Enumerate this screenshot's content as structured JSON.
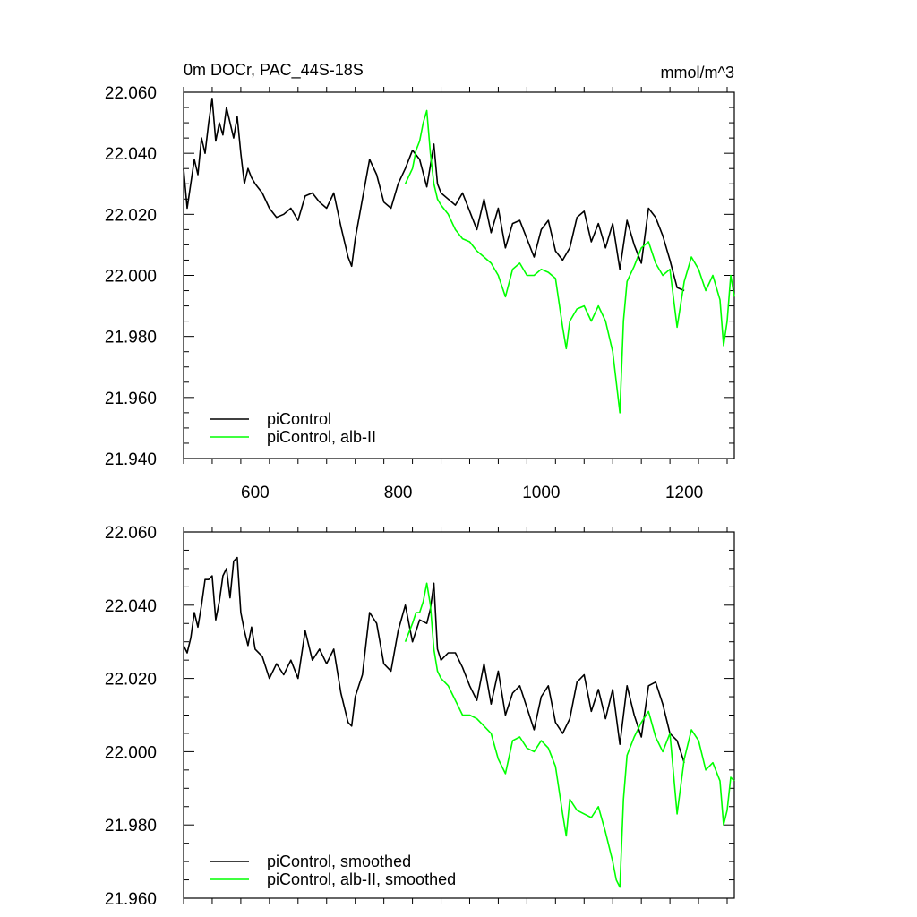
{
  "colors": {
    "background": "#ffffff",
    "axis": "#000000",
    "series_1": "#000000",
    "series_2": "#00ff00"
  },
  "chart_data": [
    {
      "type": "line",
      "title": "0m DOCr, PAC_44S-18S",
      "units": "mmol/m^3",
      "xlim": [
        500,
        1270
      ],
      "ylim": [
        21.94,
        22.06
      ],
      "x_ticks": [
        600,
        800,
        1000,
        1200
      ],
      "x_tick_labels": [
        "600",
        "800",
        "1000",
        "1200"
      ],
      "y_ticks": [
        21.94,
        21.96,
        21.98,
        22.0,
        22.02,
        22.04,
        22.06
      ],
      "y_tick_labels": [
        "21.940",
        "21.960",
        "21.980",
        "22.000",
        "22.020",
        "22.040",
        "22.060"
      ],
      "legend": [
        "piControl",
        "piControl, alb-II"
      ],
      "legend_position": "bottom-left",
      "grid": false,
      "series": [
        {
          "name": "piControl",
          "color": "#000000",
          "x": [
            500,
            505,
            510,
            515,
            520,
            525,
            530,
            535,
            540,
            545,
            550,
            555,
            560,
            565,
            570,
            575,
            580,
            585,
            590,
            595,
            600,
            610,
            620,
            630,
            640,
            650,
            660,
            670,
            680,
            690,
            700,
            710,
            720,
            730,
            735,
            740,
            750,
            760,
            770,
            780,
            790,
            800,
            810,
            820,
            830,
            840,
            845,
            850,
            855,
            860,
            870,
            880,
            890,
            900,
            910,
            920,
            930,
            940,
            950,
            960,
            970,
            980,
            990,
            1000,
            1010,
            1020,
            1030,
            1040,
            1050,
            1060,
            1070,
            1080,
            1090,
            1100,
            1110,
            1120,
            1130,
            1140,
            1150,
            1160,
            1170,
            1180,
            1190,
            1200
          ],
          "y": [
            22.035,
            22.022,
            22.03,
            22.038,
            22.033,
            22.045,
            22.04,
            22.05,
            22.058,
            22.044,
            22.05,
            22.046,
            22.055,
            22.05,
            22.045,
            22.052,
            22.04,
            22.03,
            22.035,
            22.032,
            22.03,
            22.027,
            22.022,
            22.019,
            22.02,
            22.022,
            22.018,
            22.026,
            22.027,
            22.024,
            22.022,
            22.027,
            22.016,
            22.006,
            22.003,
            22.012,
            22.025,
            22.038,
            22.033,
            22.024,
            22.022,
            22.03,
            22.035,
            22.041,
            22.038,
            22.029,
            22.036,
            22.043,
            22.03,
            22.027,
            22.025,
            22.023,
            22.027,
            22.021,
            22.015,
            22.025,
            22.014,
            22.022,
            22.009,
            22.017,
            22.018,
            22.012,
            22.006,
            22.015,
            22.018,
            22.008,
            22.005,
            22.009,
            22.019,
            22.021,
            22.011,
            22.017,
            22.009,
            22.017,
            22.002,
            22.018,
            22.01,
            22.004,
            22.022,
            22.019,
            22.013,
            22.005,
            21.996,
            21.995
          ]
        },
        {
          "name": "piControl, alb-II",
          "color": "#00ff00",
          "x": [
            810,
            820,
            825,
            830,
            835,
            840,
            845,
            850,
            855,
            860,
            870,
            880,
            890,
            900,
            910,
            920,
            930,
            940,
            950,
            960,
            970,
            980,
            990,
            1000,
            1010,
            1020,
            1030,
            1035,
            1040,
            1050,
            1060,
            1070,
            1080,
            1090,
            1100,
            1105,
            1110,
            1115,
            1120,
            1130,
            1140,
            1150,
            1160,
            1170,
            1180,
            1190,
            1200,
            1210,
            1220,
            1230,
            1240,
            1250,
            1255,
            1260,
            1265,
            1270
          ],
          "y": [
            22.03,
            22.035,
            22.041,
            22.044,
            22.05,
            22.054,
            22.04,
            22.03,
            22.025,
            22.023,
            22.02,
            22.015,
            22.012,
            22.011,
            22.008,
            22.006,
            22.004,
            22.0,
            21.993,
            22.002,
            22.004,
            22.0,
            22.0,
            22.002,
            22.001,
            21.999,
            21.983,
            21.976,
            21.985,
            21.989,
            21.99,
            21.985,
            21.99,
            21.985,
            21.975,
            21.965,
            21.955,
            21.985,
            21.998,
            22.003,
            22.009,
            22.011,
            22.004,
            22.0,
            22.002,
            21.983,
            21.998,
            22.006,
            22.002,
            21.995,
            22.0,
            21.992,
            21.977,
            21.985,
            22.0,
            21.993
          ]
        }
      ]
    },
    {
      "type": "line",
      "title": "",
      "xlim": [
        500,
        1270
      ],
      "ylim": [
        21.96,
        22.06
      ],
      "x_ticks": [
        600,
        800,
        1000,
        1200
      ],
      "y_ticks": [
        21.96,
        21.98,
        22.0,
        22.02,
        22.04,
        22.06
      ],
      "y_tick_labels": [
        "21.960",
        "21.980",
        "22.000",
        "22.020",
        "22.040",
        "22.060"
      ],
      "legend": [
        "piControl, smoothed",
        "piControl, alb-II, smoothed"
      ],
      "legend_position": "bottom-left",
      "grid": false,
      "series": [
        {
          "name": "piControl, smoothed",
          "color": "#000000",
          "x": [
            500,
            505,
            510,
            515,
            520,
            525,
            530,
            535,
            540,
            545,
            550,
            555,
            560,
            565,
            570,
            575,
            580,
            585,
            590,
            595,
            600,
            610,
            620,
            630,
            640,
            650,
            660,
            670,
            680,
            690,
            700,
            710,
            720,
            730,
            735,
            740,
            750,
            760,
            770,
            780,
            790,
            800,
            810,
            820,
            830,
            840,
            845,
            850,
            855,
            860,
            870,
            880,
            890,
            900,
            910,
            920,
            930,
            940,
            950,
            960,
            970,
            980,
            990,
            1000,
            1010,
            1020,
            1030,
            1040,
            1050,
            1060,
            1070,
            1080,
            1090,
            1100,
            1110,
            1120,
            1130,
            1140,
            1150,
            1160,
            1170,
            1180,
            1190,
            1200
          ],
          "y": [
            22.029,
            22.027,
            22.031,
            22.038,
            22.034,
            22.04,
            22.047,
            22.047,
            22.048,
            22.036,
            22.041,
            22.048,
            22.05,
            22.042,
            22.052,
            22.053,
            22.038,
            22.033,
            22.029,
            22.034,
            22.028,
            22.026,
            22.02,
            22.024,
            22.021,
            22.025,
            22.02,
            22.033,
            22.025,
            22.028,
            22.024,
            22.028,
            22.016,
            22.008,
            22.007,
            22.015,
            22.021,
            22.038,
            22.035,
            22.024,
            22.022,
            22.033,
            22.04,
            22.03,
            22.036,
            22.035,
            22.039,
            22.046,
            22.028,
            22.025,
            22.027,
            22.027,
            22.023,
            22.018,
            22.014,
            22.024,
            22.013,
            22.022,
            22.01,
            22.016,
            22.018,
            22.012,
            22.006,
            22.015,
            22.018,
            22.008,
            22.005,
            22.009,
            22.019,
            22.021,
            22.011,
            22.017,
            22.009,
            22.017,
            22.002,
            22.018,
            22.01,
            22.004,
            22.018,
            22.019,
            22.013,
            22.005,
            22.003,
            21.997
          ]
        },
        {
          "name": "piControl, alb-II, smoothed",
          "color": "#00ff00",
          "x": [
            810,
            820,
            825,
            830,
            835,
            840,
            845,
            850,
            855,
            860,
            870,
            880,
            890,
            900,
            910,
            920,
            930,
            940,
            950,
            960,
            970,
            980,
            990,
            1000,
            1010,
            1020,
            1030,
            1035,
            1040,
            1050,
            1060,
            1070,
            1080,
            1090,
            1100,
            1105,
            1110,
            1115,
            1120,
            1130,
            1140,
            1150,
            1160,
            1170,
            1180,
            1190,
            1200,
            1210,
            1220,
            1230,
            1240,
            1250,
            1255,
            1260,
            1265,
            1270
          ],
          "y": [
            22.03,
            22.035,
            22.038,
            22.038,
            22.041,
            22.046,
            22.04,
            22.028,
            22.022,
            22.02,
            22.018,
            22.014,
            22.01,
            22.01,
            22.009,
            22.007,
            22.005,
            21.998,
            21.994,
            22.003,
            22.004,
            22.001,
            22.0,
            22.003,
            22.001,
            21.996,
            21.983,
            21.977,
            21.987,
            21.984,
            21.983,
            21.982,
            21.985,
            21.978,
            21.97,
            21.965,
            21.963,
            21.987,
            21.999,
            22.004,
            22.008,
            22.011,
            22.004,
            22.0,
            22.005,
            21.983,
            21.998,
            22.006,
            22.003,
            21.995,
            21.997,
            21.992,
            21.98,
            21.984,
            21.993,
            21.992
          ]
        }
      ]
    }
  ]
}
